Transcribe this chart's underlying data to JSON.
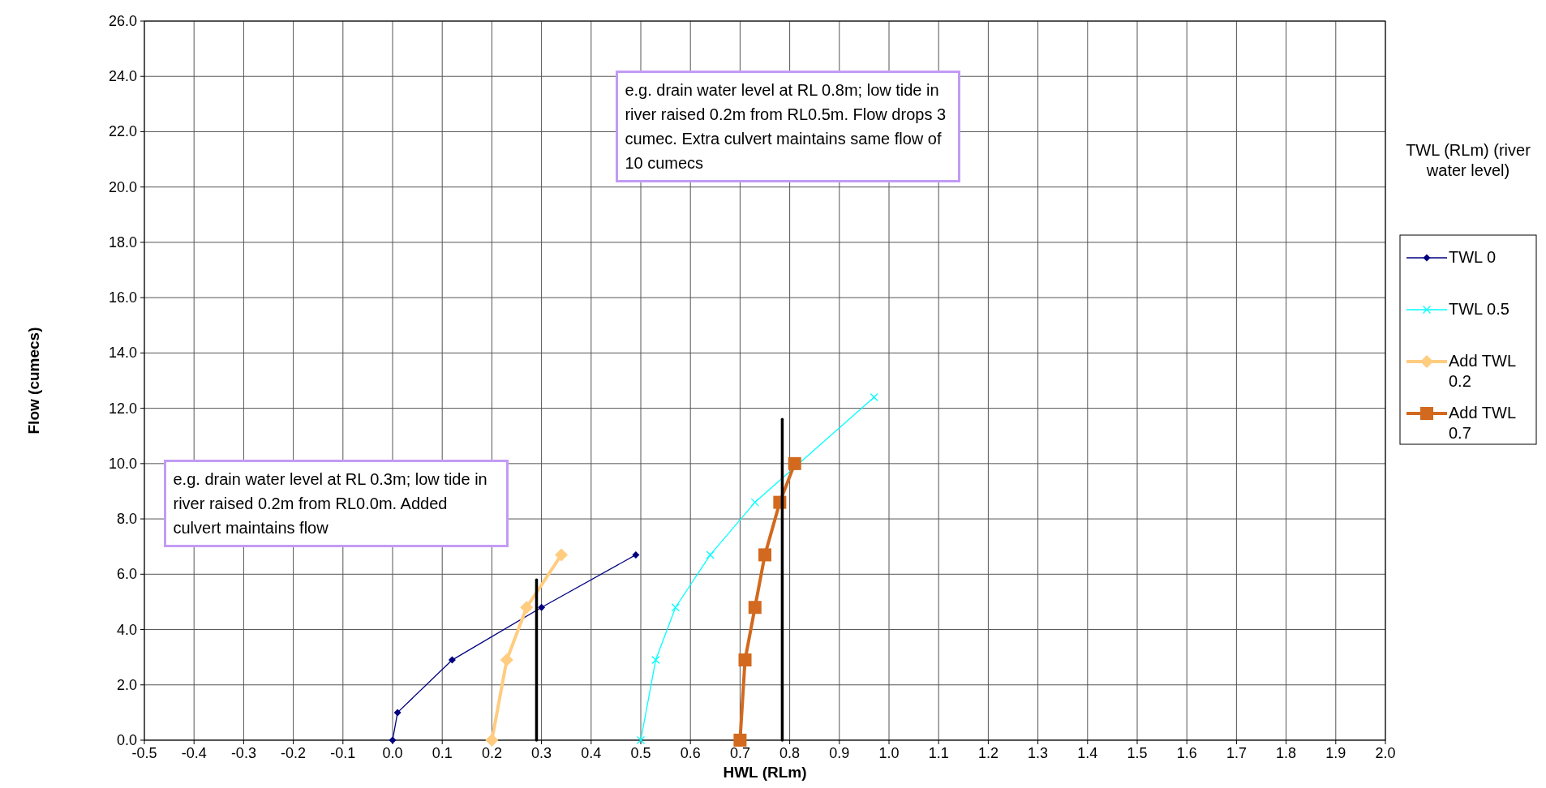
{
  "chart_data": {
    "type": "line",
    "xlabel": "HWL (RLm)",
    "ylabel": "Flow (cumecs)",
    "legend_title": "TWL (RLm) (river water level)",
    "xlim": [
      -0.5,
      2.0
    ],
    "xticks": [
      -0.5,
      -0.4,
      -0.3,
      -0.2,
      -0.1,
      {
        "value": 0,
        "label": "0.0"
      },
      0.1,
      0.2,
      0.3,
      0.4,
      0.5,
      0.6,
      0.7,
      0.8,
      0.9,
      {
        "value": 1,
        "label": "1.0"
      },
      1.1,
      1.2,
      1.3,
      1.4,
      1.5,
      1.6,
      1.7,
      1.8,
      1.9,
      {
        "value": 2,
        "label": "2.0"
      }
    ],
    "ylim": [
      0,
      26
    ],
    "yticks": [
      {
        "value": 0,
        "label": "0.0"
      },
      {
        "value": 2,
        "label": "2.0"
      },
      {
        "value": 4,
        "label": "4.0"
      },
      {
        "value": 6,
        "label": "6.0"
      },
      {
        "value": 8,
        "label": "8.0"
      },
      {
        "value": 10,
        "label": "10.0"
      },
      {
        "value": 12,
        "label": "12.0"
      },
      {
        "value": 14,
        "label": "14.0"
      },
      {
        "value": 16,
        "label": "16.0"
      },
      {
        "value": 18,
        "label": "18.0"
      },
      {
        "value": 20,
        "label": "20.0"
      },
      {
        "value": 22,
        "label": "22.0"
      },
      {
        "value": 24,
        "label": "24.0"
      },
      {
        "value": 26,
        "label": "26.0"
      }
    ],
    "grid": true,
    "legend": "right",
    "series": [
      {
        "name": "TWL 0",
        "color": "#000080",
        "marker": "diamond",
        "x": [
          0,
          0.01,
          0.12,
          0.3,
          0.49
        ],
        "values": [
          0,
          1.0,
          2.9,
          4.8,
          6.7
        ]
      },
      {
        "name": "TWL 0.5",
        "color": "#00ffff",
        "marker": "cross",
        "x": [
          0.5,
          0.53,
          0.57,
          0.64,
          0.73,
          0.97
        ],
        "values": [
          0,
          2.9,
          4.8,
          6.7,
          8.6,
          12.4
        ]
      },
      {
        "name": "Add TWL 0.2",
        "color": "#ffcc80",
        "marker": "diamond",
        "x": [
          0.2,
          0.23,
          0.27,
          0.34
        ],
        "values": [
          0,
          2.9,
          4.8,
          6.7
        ]
      },
      {
        "name": "Add TWL 0.7",
        "color": "#d2691e",
        "marker": "square",
        "x": [
          0.7,
          0.71,
          0.73,
          0.75,
          0.78,
          0.81
        ],
        "values": [
          0,
          2.9,
          4.8,
          6.7,
          8.6,
          10.0
        ]
      },
      {
        "color": "#000000",
        "marker": "none",
        "x": [
          0.29,
          0.29
        ],
        "values": [
          0,
          5.8
        ]
      },
      {
        "color": "#000000",
        "marker": "none",
        "x": [
          0.785,
          0.785
        ],
        "values": [
          0,
          11.6
        ]
      }
    ],
    "annotations": [
      "e.g. drain water level at RL 0.3m; low tide in river  raised 0.2m from RL0.0m. Added culvert maintains flow",
      "e.g. drain water level at RL 0.8m; low tide in river  raised 0.2m from RL0.5m. Flow drops 3 cumec. Extra culvert maintains same flow of 10 cumecs"
    ]
  }
}
